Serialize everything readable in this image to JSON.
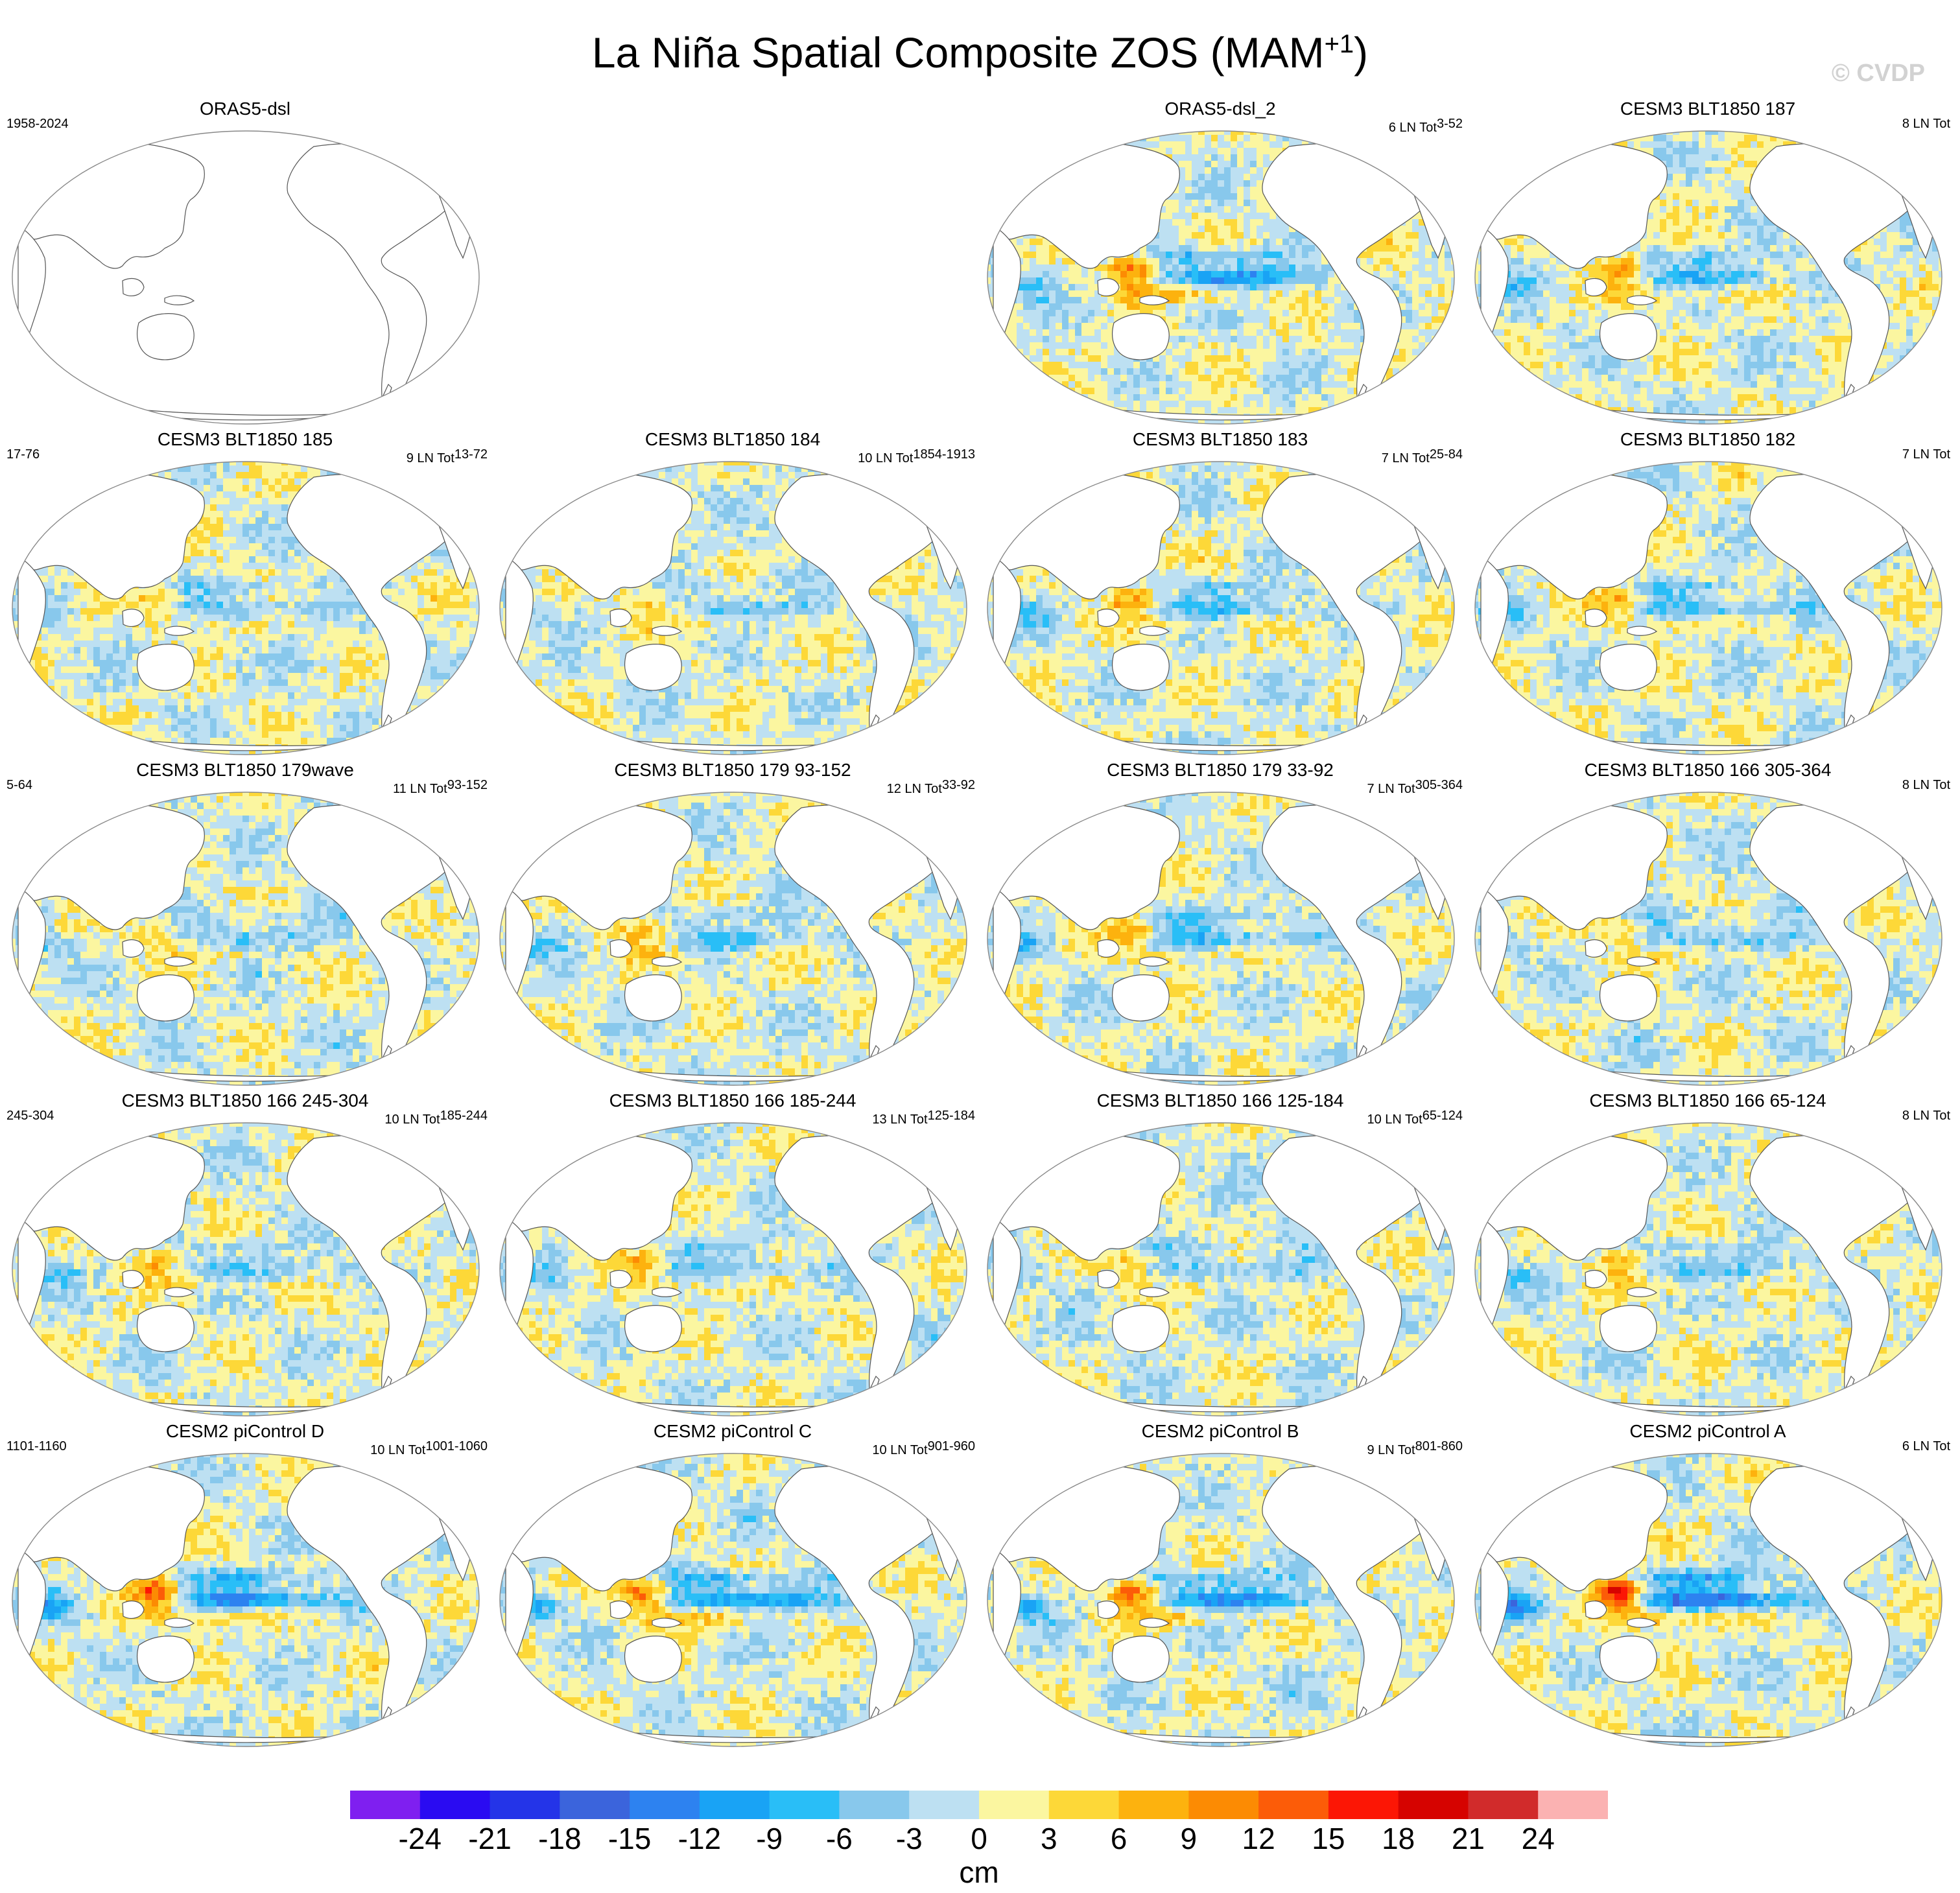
{
  "title": {
    "main": "La Niña Spatial Composite ZOS (MAM",
    "sup": "+1",
    "tail": ")"
  },
  "watermark": "© CVDP",
  "colors": {
    "land": "#ffffff",
    "coast": "#555555",
    "pos_weak": "#fbf6a0",
    "neg_weak": "#bde0f2",
    "colorbar": [
      "#7f1ff0",
      "#2a0bf2",
      "#2434e8",
      "#3b64dc",
      "#2d82f0",
      "#19a3f5",
      "#29bef7",
      "#88c8ec",
      "#bde0f2",
      "#fbf6a0",
      "#fdd838",
      "#fdb20e",
      "#fc8b03",
      "#fc5c08",
      "#fc1605",
      "#d60300",
      "#d12b2b",
      "#fbb2b2"
    ]
  },
  "chart_data": {
    "type": "heatmap",
    "title": "La Niña Spatial Composite ZOS (MAM+1)",
    "projection": "Robinson, Pacific-centered",
    "units": "cm",
    "colorbar": {
      "levels": [
        -24,
        -21,
        -18,
        -15,
        -12,
        -9,
        -6,
        -3,
        0,
        3,
        6,
        9,
        12,
        15,
        18,
        21,
        24
      ],
      "label": "cm"
    },
    "panels": [
      {
        "name": "ORAS5-dsl",
        "left_label": "1958-2024",
        "right_label": "",
        "right_sup": "",
        "empty": true
      },
      {
        "name": "ORAS5-dsl_2",
        "left_label": "",
        "right_label": "6 LN Tot",
        "right_sup": "3-52",
        "amp": 1.0,
        "seed": 11
      },
      {
        "name": "CESM3 BLT1850 187",
        "left_label": "",
        "right_label": "8 LN Tot",
        "right_sup": "",
        "amp": 0.6,
        "seed": 12
      },
      {
        "name": "CESM3 BLT1850 185",
        "left_label": "17-76",
        "right_label": "9 LN Tot",
        "right_sup": "13-72",
        "amp": 0.45,
        "seed": 13
      },
      {
        "name": "CESM3 BLT1850 184",
        "left_label": "",
        "right_label": "10 LN Tot",
        "right_sup": "1854-1913",
        "amp": 0.45,
        "seed": 14
      },
      {
        "name": "CESM3 BLT1850 183",
        "left_label": "",
        "right_label": "7 LN Tot",
        "right_sup": "25-84",
        "amp": 0.55,
        "seed": 15
      },
      {
        "name": "CESM3 BLT1850 182",
        "left_label": "",
        "right_label": "7 LN Tot",
        "right_sup": "",
        "amp": 0.6,
        "seed": 16
      },
      {
        "name": "CESM3 BLT1850 179wave",
        "left_label": "5-64",
        "right_label": "11 LN Tot",
        "right_sup": "93-152",
        "amp": 0.45,
        "seed": 17
      },
      {
        "name": "CESM3 BLT1850 179 93-152",
        "left_label": "",
        "right_label": "12 LN Tot",
        "right_sup": "33-92",
        "amp": 0.45,
        "seed": 18
      },
      {
        "name": "CESM3 BLT1850 179 33-92",
        "left_label": "",
        "right_label": "7 LN Tot",
        "right_sup": "305-364",
        "amp": 0.6,
        "seed": 19
      },
      {
        "name": "CESM3 BLT1850 166 305-364",
        "left_label": "",
        "right_label": "8 LN Tot",
        "right_sup": "",
        "amp": 0.5,
        "seed": 20
      },
      {
        "name": "CESM3 BLT1850 166 245-304",
        "left_label": "245-304",
        "right_label": "10 LN Tot",
        "right_sup": "185-244",
        "amp": 0.45,
        "seed": 21
      },
      {
        "name": "CESM3 BLT1850 166 185-244",
        "left_label": "",
        "right_label": "13 LN Tot",
        "right_sup": "125-184",
        "amp": 0.45,
        "seed": 22
      },
      {
        "name": "CESM3 BLT1850 166 125-184",
        "left_label": "",
        "right_label": "10 LN Tot",
        "right_sup": "65-124",
        "amp": 0.4,
        "seed": 23
      },
      {
        "name": "CESM3 BLT1850 166 65-124",
        "left_label": "",
        "right_label": "8 LN Tot",
        "right_sup": "",
        "amp": 0.5,
        "seed": 24
      },
      {
        "name": "CESM2 piControl D",
        "left_label": "1101-1160",
        "right_label": "10 LN Tot",
        "right_sup": "1001-1060",
        "amp": 1.0,
        "seed": 25
      },
      {
        "name": "CESM2 piControl C",
        "left_label": "",
        "right_label": "10 LN Tot",
        "right_sup": "901-960",
        "amp": 1.0,
        "seed": 26
      },
      {
        "name": "CESM2 piControl B",
        "left_label": "",
        "right_label": "9 LN Tot",
        "right_sup": "801-860",
        "amp": 1.0,
        "seed": 27
      },
      {
        "name": "CESM2 piControl A",
        "left_label": "",
        "right_label": "6 LN Tot",
        "right_sup": "",
        "amp": 1.3,
        "seed": 28
      }
    ]
  }
}
